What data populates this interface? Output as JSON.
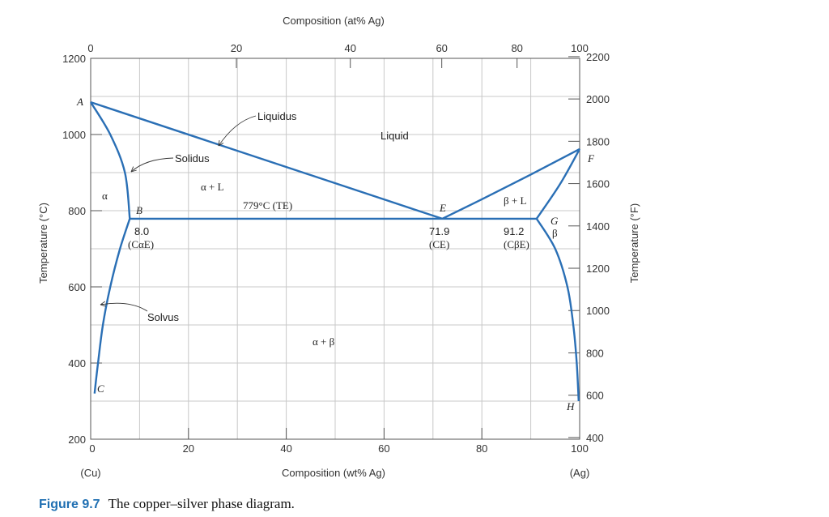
{
  "chart_data": {
    "type": "phase-diagram",
    "title": "",
    "x_bottom": {
      "label": "Composition (wt% Ag)",
      "range": [
        0,
        100
      ],
      "ticks": [
        "0",
        "20",
        "40",
        "60",
        "80",
        "100"
      ],
      "end_labels": [
        "(Cu)",
        "(Ag)"
      ]
    },
    "x_top": {
      "label": "Composition (at% Ag)",
      "ticks": [
        {
          "at": 0,
          "wt": 0,
          "label": "0"
        },
        {
          "at": 20,
          "wt": 29.8,
          "label": "20"
        },
        {
          "at": 40,
          "wt": 53.1,
          "label": "40"
        },
        {
          "at": 60,
          "wt": 71.8,
          "label": "60"
        },
        {
          "at": 80,
          "wt": 87.2,
          "label": "80"
        },
        {
          "at": 100,
          "wt": 100,
          "label": "100"
        }
      ]
    },
    "y_left": {
      "label": "Temperature (°C)",
      "range": [
        200,
        1200
      ],
      "ticks": [
        "200",
        "400",
        "600",
        "800",
        "1000",
        "1200"
      ]
    },
    "y_right": {
      "label": "Temperature (°F)",
      "ticks": [
        "400",
        "600",
        "800",
        "1000",
        "1200",
        "1400",
        "1600",
        "1800",
        "2000",
        "2200"
      ]
    },
    "curves": [
      {
        "name": "liquidus-left",
        "points": [
          [
            0,
            1085
          ],
          [
            71.9,
            779
          ]
        ]
      },
      {
        "name": "liquidus-right",
        "points": [
          [
            71.9,
            779
          ],
          [
            80,
            830
          ],
          [
            90,
            895
          ],
          [
            100,
            962
          ]
        ]
      },
      {
        "name": "solidus-left",
        "points": [
          [
            0,
            1085
          ],
          [
            4,
            1000
          ],
          [
            7,
            900
          ],
          [
            8.0,
            779
          ]
        ]
      },
      {
        "name": "solidus-right",
        "points": [
          [
            100,
            962
          ],
          [
            96,
            870
          ],
          [
            91.2,
            779
          ]
        ]
      },
      {
        "name": "solvus-left",
        "points": [
          [
            8.0,
            779
          ],
          [
            6,
            700
          ],
          [
            4,
            600
          ],
          [
            2.5,
            500
          ],
          [
            1.5,
            400
          ],
          [
            0.8,
            320
          ]
        ]
      },
      {
        "name": "solvus-right",
        "points": [
          [
            91.2,
            779
          ],
          [
            95,
            700
          ],
          [
            97.5,
            600
          ],
          [
            98.7,
            500
          ],
          [
            99.4,
            400
          ],
          [
            99.8,
            300
          ]
        ]
      },
      {
        "name": "eutectic-isotherm",
        "points": [
          [
            8.0,
            779
          ],
          [
            91.2,
            779
          ]
        ]
      }
    ],
    "point_labels": [
      {
        "text": "A",
        "x": 0,
        "y": 1085
      },
      {
        "text": "B",
        "x": 8.0,
        "y": 779
      },
      {
        "text": "C",
        "x": 0.8,
        "y": 320
      },
      {
        "text": "E",
        "x": 71.9,
        "y": 779
      },
      {
        "text": "F",
        "x": 100,
        "y": 962
      },
      {
        "text": "G",
        "x": 91.2,
        "y": 779
      },
      {
        "text": "H",
        "x": 99.8,
        "y": 300
      }
    ],
    "annotations": [
      {
        "text": "Liquidus"
      },
      {
        "text": "Solidus"
      },
      {
        "text": "Solvus"
      },
      {
        "text": "Liquid"
      },
      {
        "text": "α"
      },
      {
        "text": "α + L"
      },
      {
        "text": "β + L"
      },
      {
        "text": "β"
      },
      {
        "text": "α + β"
      },
      {
        "text": "779°C (TE)"
      },
      {
        "text": "8.0"
      },
      {
        "text": "(CαE)"
      },
      {
        "text": "71.9"
      },
      {
        "text": "(CE)"
      },
      {
        "text": "91.2"
      },
      {
        "text": "(CβE)"
      }
    ],
    "grid": true,
    "colors": {
      "curve": "#2a6fb5",
      "grid": "#c8c8c8",
      "frame": "#555555"
    }
  },
  "caption": {
    "figure_label": "Figure 9.7",
    "text": "The copper–silver phase diagram."
  }
}
